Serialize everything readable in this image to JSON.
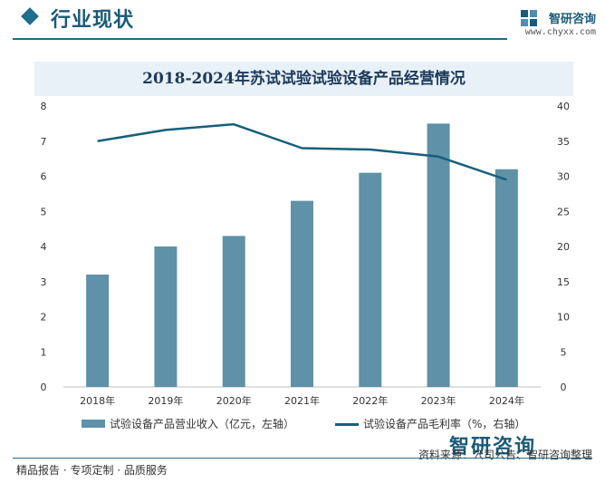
{
  "header": {
    "section_title": "行业现状",
    "brand_name": "智研咨询",
    "brand_url": "www.chyxx.com"
  },
  "chart_data": {
    "type": "bar",
    "title": "2018-2024年苏试试验试验设备产品经营情况",
    "categories": [
      "2018年",
      "2019年",
      "2020年",
      "2021年",
      "2022年",
      "2023年",
      "2024年"
    ],
    "series": [
      {
        "name": "试验设备产品营业收入（亿元，左轴）",
        "type": "bar",
        "axis": "left",
        "color": "#5f91a8",
        "values": [
          3.2,
          4.0,
          4.3,
          5.3,
          6.1,
          7.5,
          6.2
        ]
      },
      {
        "name": "试验设备产品毛利率（%，右轴）",
        "type": "line",
        "axis": "right",
        "color": "#14607a",
        "values": [
          35.0,
          36.6,
          37.4,
          34.0,
          33.8,
          32.8,
          29.5
        ]
      }
    ],
    "y_left": {
      "min": 0,
      "max": 8,
      "ticks": [
        0,
        1,
        2,
        3,
        4,
        5,
        6,
        7,
        8
      ]
    },
    "y_right": {
      "min": 0,
      "max": 40,
      "ticks": [
        0,
        5,
        10,
        15,
        20,
        25,
        30,
        35,
        40
      ]
    },
    "grid": false,
    "legend_position": "bottom"
  },
  "footer": {
    "tagline": "精品报告 · 专项定制 · 品质服务",
    "source": "资料来源：公司公告、智研咨询整理",
    "brand": "智研咨询"
  }
}
